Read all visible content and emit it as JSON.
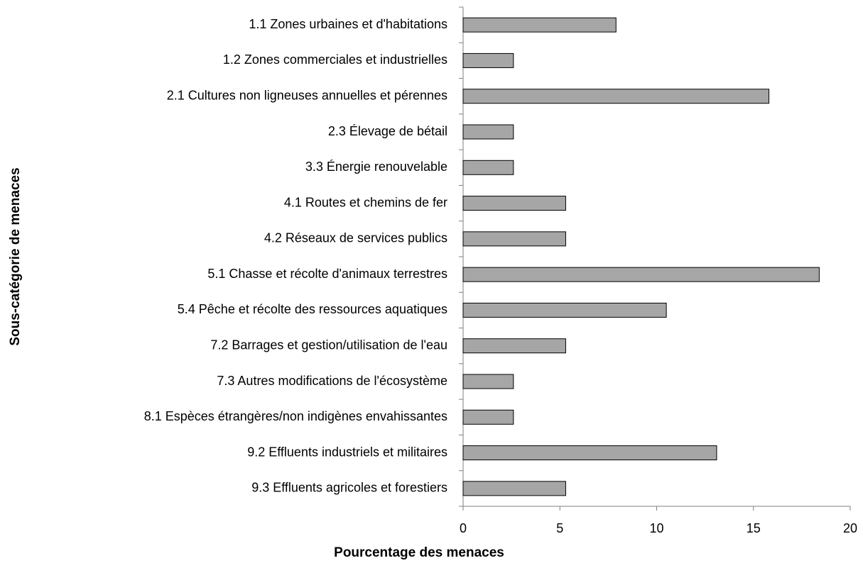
{
  "chart_data": {
    "type": "barh",
    "xlabel": "Pourcentage des menaces",
    "ylabel": "Sous-catégorie de menaces",
    "categories": [
      "1.1 Zones urbaines et d'habitations",
      "1.2 Zones commerciales et industrielles",
      "2.1 Cultures non ligneuses annuelles et pérennes",
      "2.3 Élevage de bétail",
      "3.3 Énergie renouvelable",
      "4.1 Routes et chemins de fer",
      "4.2 Réseaux de services publics",
      "5.1 Chasse et récolte d'animaux terrestres",
      "5.4 Pêche et récolte des ressources aquatiques",
      "7.2 Barrages et gestion/utilisation de l'eau",
      "7.3 Autres modifications de l'écosystème",
      "8.1 Espèces étrangères/non indigènes envahissantes",
      "9.2 Effluents industriels et militaires",
      "9.3 Effluents agricoles et forestiers"
    ],
    "values": [
      7.9,
      2.6,
      15.8,
      2.6,
      2.6,
      5.3,
      5.3,
      18.4,
      10.5,
      5.3,
      2.6,
      2.6,
      13.1,
      5.3
    ],
    "color": "#a6a6a6",
    "xlim": [
      0,
      20
    ],
    "xticks": [
      0,
      5,
      10,
      15,
      20
    ]
  }
}
